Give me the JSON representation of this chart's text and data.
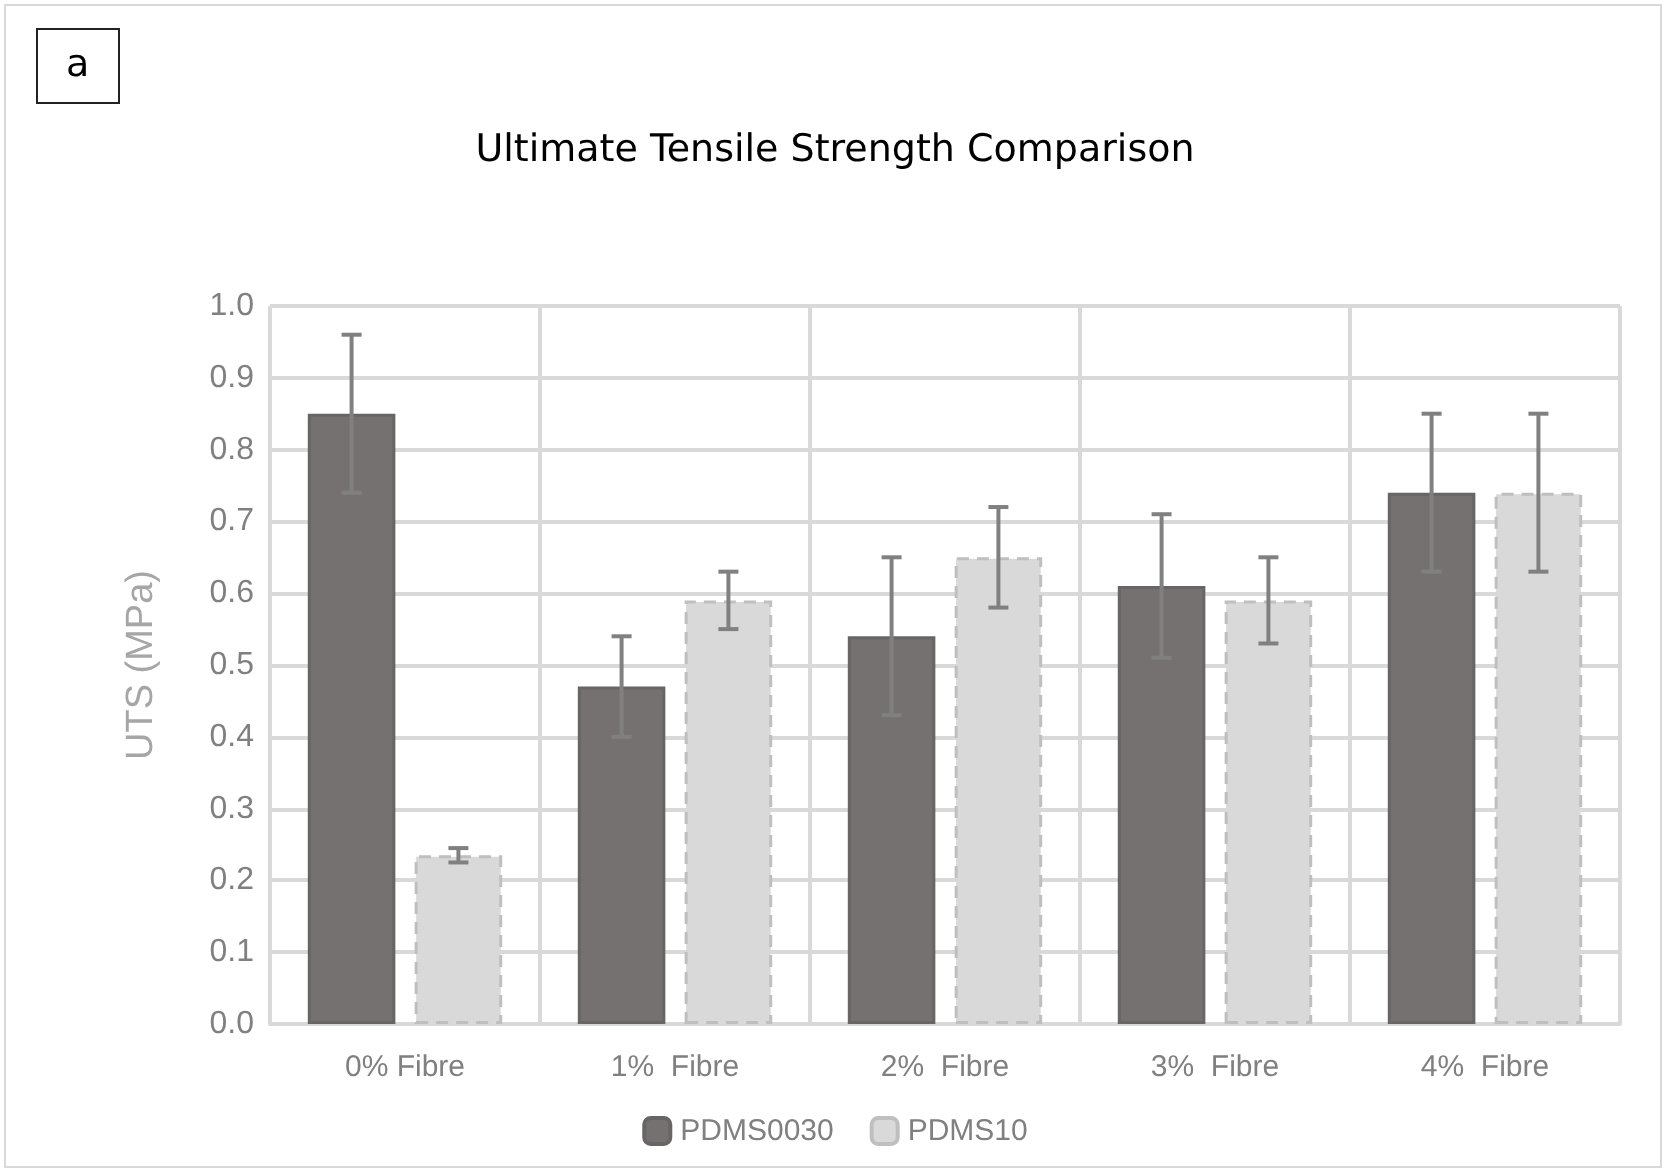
{
  "chart_data": {
    "type": "bar",
    "title": "Ultimate Tensile Strength Comparison",
    "ylabel": "UTS (MPa)",
    "annotations": [
      "a"
    ],
    "categories": [
      "0% Fibre",
      "1%  Fibre",
      "2%  Fibre",
      "3%  Fibre",
      "4%  Fibre"
    ],
    "series": [
      {
        "name": "PDMS0030",
        "color": "#767171",
        "values": [
          0.85,
          0.47,
          0.54,
          0.61,
          0.74
        ],
        "errors": [
          0.11,
          0.07,
          0.11,
          0.1,
          0.11
        ]
      },
      {
        "name": "PDMS10",
        "color": "#d9d9d9",
        "line_style": "dashed",
        "values": [
          0.235,
          0.59,
          0.65,
          0.59,
          0.74
        ],
        "errors": [
          0.01,
          0.04,
          0.07,
          0.06,
          0.11
        ]
      }
    ],
    "ylim": [
      0,
      1
    ],
    "yticks": [
      {
        "value": 0,
        "label": "0.0"
      },
      0.1,
      0.2,
      0.3,
      0.4,
      0.5,
      0.6,
      0.7,
      0.8,
      0.9,
      {
        "value": 1,
        "label": "1.0"
      }
    ],
    "grid": true,
    "legend": "bottom"
  }
}
